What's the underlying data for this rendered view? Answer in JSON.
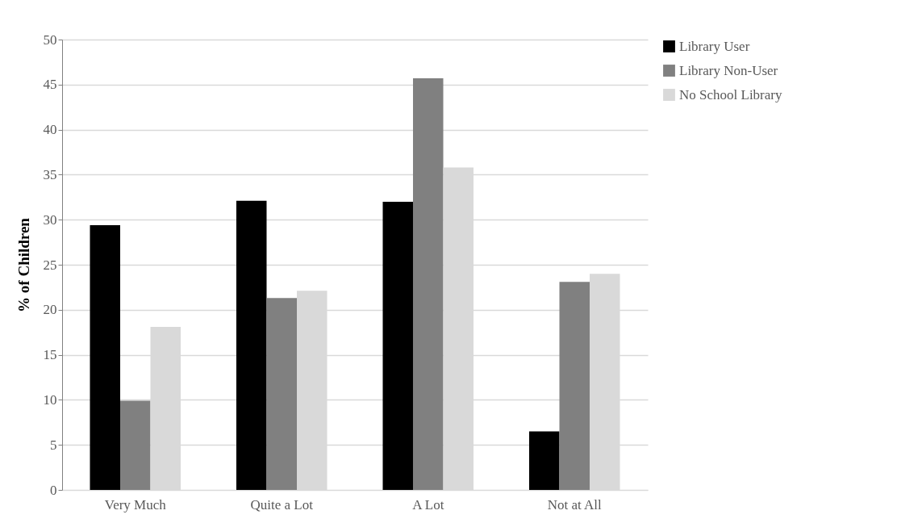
{
  "chart_data": {
    "type": "bar",
    "ylabel": "% of Children",
    "categories": [
      "Very Much",
      "Quite a Lot",
      "A Lot",
      "Not at All"
    ],
    "series": [
      {
        "name": "Library User",
        "color": "#000000",
        "values": [
          29.4,
          32.1,
          32.0,
          6.5
        ]
      },
      {
        "name": "Library Non-User",
        "color": "#808080",
        "values": [
          9.9,
          21.3,
          45.7,
          23.1
        ]
      },
      {
        "name": "No School Library",
        "color": "#d9d9d9",
        "values": [
          18.1,
          22.1,
          35.8,
          24.0
        ]
      }
    ],
    "ylim": [
      0,
      50
    ],
    "yticks": [
      0,
      5,
      10,
      15,
      20,
      25,
      30,
      35,
      40,
      45,
      50
    ],
    "grid": "y",
    "legend": "right"
  }
}
